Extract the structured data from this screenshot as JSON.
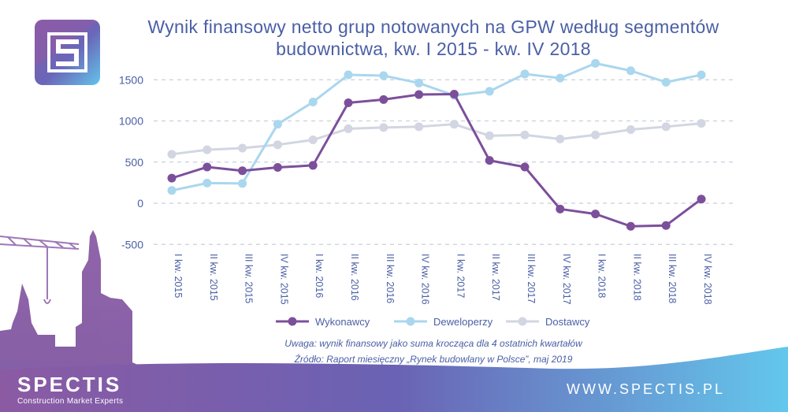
{
  "title": {
    "line1": "Wynik finansowy netto grup notowanych na GPW według segmentów",
    "line2": "budownictwa, kw. I 2015 - kw. IV 2018"
  },
  "legend": [
    {
      "label": "Wykonawcy"
    },
    {
      "label": "Deweloperzy"
    },
    {
      "label": "Dostawcy"
    }
  ],
  "notes": {
    "note1": "Uwaga: wynik finansowy jako suma krocząca dla 4 ostatnich kwartałów",
    "note2": "Źródło: Raport miesięczny „Rynek budowlany w Polsce”, maj 2019"
  },
  "brand": {
    "name": "SPECTIS",
    "tagline": "Construction Market Experts",
    "url": "WWW.SPECTIS.PL"
  },
  "colors": {
    "wykonawcy": "#7c4f9b",
    "deweloperzy": "#a9d7ee",
    "dostawcy": "#d2d6e2",
    "text": "#4a5fa5",
    "grid": "#c9cfdf"
  },
  "chart_data": {
    "type": "line",
    "title": "Wynik finansowy netto grup notowanych na GPW według segmentów budownictwa, kw. I 2015 - kw. IV 2018",
    "xlabel": "",
    "ylabel": "",
    "ylim": [
      -500,
      1500
    ],
    "yticks": [
      -500,
      0,
      500,
      1000,
      1500
    ],
    "grid": true,
    "legend_position": "bottom",
    "categories": [
      "I kw. 2015",
      "II kw. 2015",
      "III kw. 2015",
      "IV kw. 2015",
      "I kw. 2016",
      "II kw. 2016",
      "III kw. 2016",
      "IV kw. 2016",
      "I kw. 2017",
      "II kw. 2017",
      "III kw. 2017",
      "IV kw. 2017",
      "I kw. 2018",
      "II kw. 2018",
      "III kw. 2018",
      "IV kw. 2018"
    ],
    "series": [
      {
        "name": "Wykonawcy",
        "values": [
          305,
          440,
          395,
          435,
          460,
          1220,
          1260,
          1320,
          1325,
          520,
          440,
          -70,
          -130,
          -280,
          -270,
          50
        ]
      },
      {
        "name": "Deweloperzy",
        "values": [
          155,
          245,
          240,
          960,
          1230,
          1560,
          1550,
          1460,
          1310,
          1360,
          1570,
          1520,
          1700,
          1610,
          1470,
          1560
        ]
      },
      {
        "name": "Dostawcy",
        "values": [
          595,
          650,
          670,
          710,
          770,
          905,
          920,
          930,
          960,
          820,
          830,
          780,
          830,
          895,
          930,
          970
        ]
      }
    ]
  }
}
